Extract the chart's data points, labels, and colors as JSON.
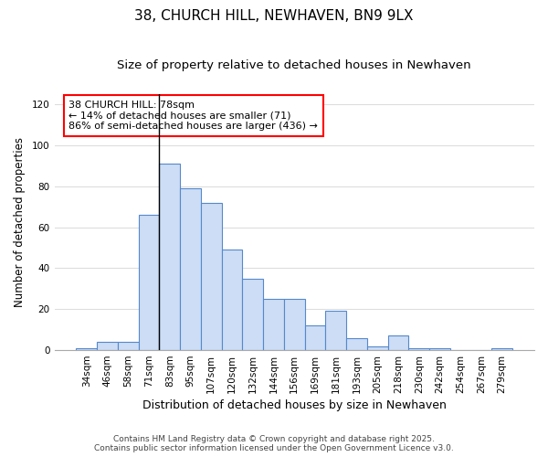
{
  "title": "38, CHURCH HILL, NEWHAVEN, BN9 9LX",
  "subtitle": "Size of property relative to detached houses in Newhaven",
  "xlabel": "Distribution of detached houses by size in Newhaven",
  "ylabel": "Number of detached properties",
  "categories": [
    "34sqm",
    "46sqm",
    "58sqm",
    "71sqm",
    "83sqm",
    "95sqm",
    "107sqm",
    "120sqm",
    "132sqm",
    "144sqm",
    "156sqm",
    "169sqm",
    "181sqm",
    "193sqm",
    "205sqm",
    "218sqm",
    "230sqm",
    "242sqm",
    "254sqm",
    "267sqm",
    "279sqm"
  ],
  "values": [
    1,
    4,
    4,
    66,
    91,
    79,
    72,
    49,
    35,
    25,
    25,
    12,
    19,
    6,
    2,
    7,
    1,
    1,
    0,
    0,
    1
  ],
  "bar_color": "#ccddf5",
  "bar_edge_color": "#5588cc",
  "background_color": "#ffffff",
  "fig_background_color": "#ffffff",
  "grid_color": "#dddddd",
  "ylim": [
    0,
    125
  ],
  "yticks": [
    0,
    20,
    40,
    60,
    80,
    100,
    120
  ],
  "annotation_line1": "38 CHURCH HILL: 78sqm",
  "annotation_line2": "← 14% of detached houses are smaller (71)",
  "annotation_line3": "86% of semi-detached houses are larger (436) →",
  "vline_bin_index": 4,
  "footnote1": "Contains HM Land Registry data © Crown copyright and database right 2025.",
  "footnote2": "Contains public sector information licensed under the Open Government Licence v3.0.",
  "title_fontsize": 11,
  "subtitle_fontsize": 9.5,
  "xlabel_fontsize": 9,
  "ylabel_fontsize": 8.5,
  "tick_fontsize": 7.5,
  "annotation_fontsize": 8,
  "footnote_fontsize": 6.5
}
